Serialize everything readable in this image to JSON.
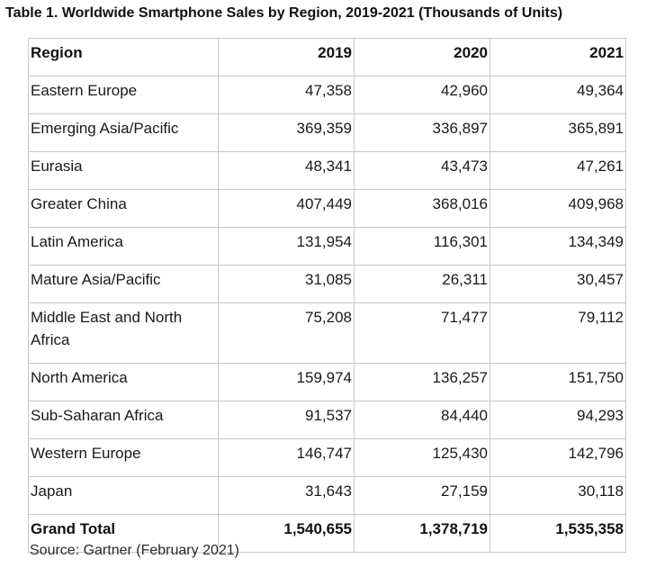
{
  "title": "Table 1. Worldwide Smartphone Sales by Region, 2019-2021 (Thousands of Units)",
  "table": {
    "headers": [
      "Region",
      "2019",
      "2020",
      "2021"
    ],
    "rows": [
      {
        "region": "Eastern Europe",
        "y2019": "47,358",
        "y2020": "42,960",
        "y2021": "49,364"
      },
      {
        "region": "Emerging Asia/Pacific",
        "y2019": "369,359",
        "y2020": "336,897",
        "y2021": "365,891"
      },
      {
        "region": "Eurasia",
        "y2019": "48,341",
        "y2020": "43,473",
        "y2021": "47,261"
      },
      {
        "region": "Greater China",
        "y2019": "407,449",
        "y2020": "368,016",
        "y2021": "409,968"
      },
      {
        "region": "Latin America",
        "y2019": "131,954",
        "y2020": "116,301",
        "y2021": "134,349"
      },
      {
        "region": "Mature Asia/Pacific",
        "y2019": "31,085",
        "y2020": "26,311",
        "y2021": "30,457"
      },
      {
        "region": "Middle East and North Africa",
        "y2019": "75,208",
        "y2020": "71,477",
        "y2021": "79,112"
      },
      {
        "region": "North America",
        "y2019": "159,974",
        "y2020": "136,257",
        "y2021": "151,750"
      },
      {
        "region": "Sub-Saharan Africa",
        "y2019": "91,537",
        "y2020": "84,440",
        "y2021": "94,293"
      },
      {
        "region": "Western Europe",
        "y2019": "146,747",
        "y2020": "125,430",
        "y2021": "142,796"
      },
      {
        "region": "Japan",
        "y2019": "31,643",
        "y2020": "27,159",
        "y2021": "30,118"
      }
    ],
    "total": {
      "region": "Grand Total",
      "y2019": "1,540,655",
      "y2020": "1,378,719",
      "y2021": "1,535,358"
    }
  },
  "source": "Source: Gartner (February 2021)"
}
